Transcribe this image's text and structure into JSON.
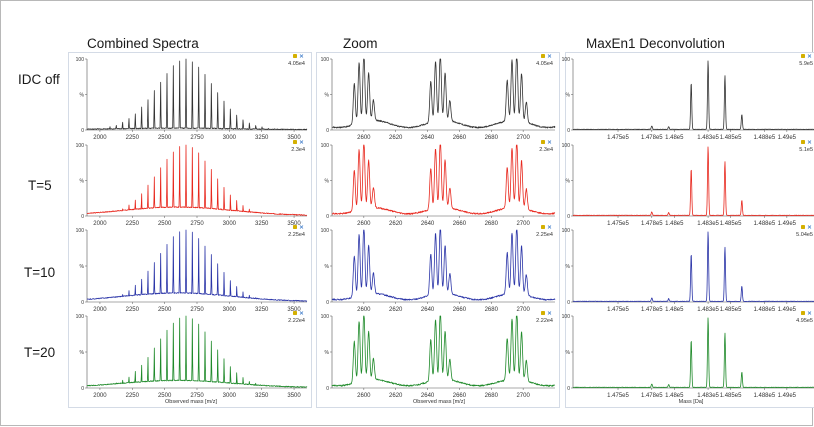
{
  "columns": [
    {
      "id": "combined",
      "title": "Combined Spectra"
    },
    {
      "id": "zoom",
      "title": "Zoom"
    },
    {
      "id": "deconv",
      "title": "MaxEn1 Deconvolution"
    }
  ],
  "rows": [
    {
      "label": "IDC off",
      "color": "#333333"
    },
    {
      "label": "T=5",
      "color": "#e8281e"
    },
    {
      "label": "T=10",
      "color": "#2b35a8"
    },
    {
      "label": "T=20",
      "color": "#1f8a2a"
    }
  ],
  "x_axis_titles": {
    "combined": "Observed mass [m/z]",
    "zoom": "Observed mass [m/z]",
    "deconv": "Mass [Da]"
  },
  "chart_data": [
    {
      "type": "line",
      "panel": "combined",
      "xlim": [
        1900,
        3600
      ],
      "ylim": [
        0,
        100
      ],
      "x_ticks": [
        2000,
        2250,
        2500,
        2750,
        3000,
        3250,
        3500
      ],
      "x_tick_labels": [
        "2000",
        "2250",
        "2500",
        "2750",
        "3000",
        "3250",
        "3500"
      ],
      "y_ticks": [
        0,
        50,
        100
      ],
      "y_tick_labels": [
        "0",
        "%",
        "100"
      ],
      "peak_start": 1930,
      "peak_spacing": 49,
      "peak_center": 2660,
      "peak_sigma": 330,
      "baseline_center": 2600,
      "baseline_sigma": 600,
      "series": [
        {
          "baseline": 2,
          "max_label": "4.05e4"
        },
        {
          "baseline": 12,
          "max_label": "2.3e4"
        },
        {
          "baseline": 12,
          "max_label": "2.25e4"
        },
        {
          "baseline": 10,
          "max_label": "2.22e4"
        }
      ]
    },
    {
      "type": "line",
      "panel": "zoom",
      "xlim": [
        2580,
        2720
      ],
      "ylim": [
        0,
        100
      ],
      "x_ticks": [
        2600,
        2620,
        2640,
        2660,
        2680,
        2700
      ],
      "x_tick_labels": [
        "2600",
        "2620",
        "2640",
        "2660",
        "2680",
        "2700"
      ],
      "y_ticks": [
        0,
        50,
        100
      ],
      "y_tick_labels": [
        "0",
        "%",
        "100"
      ],
      "clusters": [
        2600,
        2648,
        2696
      ],
      "cluster_peaks": [
        [
          -6,
          0.6
        ],
        [
          -3,
          0.88
        ],
        [
          0,
          1.0
        ],
        [
          3,
          0.7
        ],
        [
          6,
          0.3
        ]
      ],
      "peak_width": 0.9,
      "series": [
        {
          "baseline": 14,
          "max_label": "4.05e4"
        },
        {
          "baseline": 12,
          "max_label": "2.3e4"
        },
        {
          "baseline": 12,
          "max_label": "2.25e4"
        },
        {
          "baseline": 12,
          "max_label": "2.22e4"
        }
      ]
    },
    {
      "type": "line",
      "panel": "deconv",
      "xlim": [
        147100,
        149250
      ],
      "ylim": [
        0,
        100
      ],
      "x_ticks": [
        147500,
        147800,
        148000,
        148300,
        148500,
        148800,
        149000
      ],
      "x_tick_labels": [
        "1.475e5",
        "1.478e5",
        "1.48e5",
        "1.483e5",
        "1.485e5",
        "1.488e5",
        "1.49e5"
      ],
      "y_ticks": [
        0,
        50,
        100
      ],
      "y_tick_labels": [
        "0",
        "%",
        "100"
      ],
      "peaks": [
        [
          148150,
          0.68
        ],
        [
          148300,
          1.0
        ],
        [
          148450,
          0.78
        ],
        [
          148600,
          0.22
        ],
        [
          147800,
          0.05
        ],
        [
          147950,
          0.04
        ]
      ],
      "peak_width": 7,
      "series": [
        {
          "max_label": "5.9e5"
        },
        {
          "max_label": "5.1e5"
        },
        {
          "max_label": "5.04e5"
        },
        {
          "max_label": "4.95e5"
        }
      ]
    }
  ]
}
